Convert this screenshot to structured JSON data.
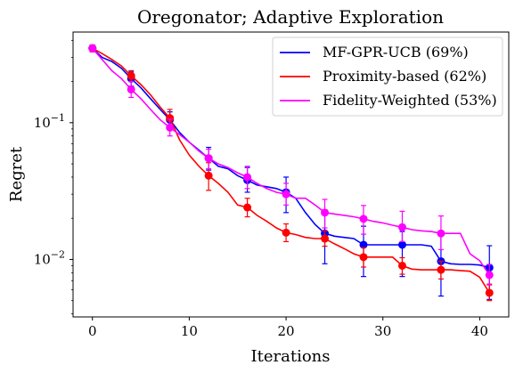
{
  "chart_data": {
    "type": "line",
    "title": "Oregonator; Adaptive Exploration",
    "xlabel": "Iterations",
    "ylabel": "Regret",
    "xlim": [
      -2,
      43
    ],
    "ylim": [
      0.0038,
      0.46
    ],
    "yscale": "log",
    "grid": false,
    "legend_position": "top-right",
    "xticks": [
      0,
      10,
      20,
      30,
      40
    ],
    "xtick_labels": [
      "0",
      "10",
      "20",
      "30",
      "40"
    ],
    "yticks": [
      0.01,
      0.1
    ],
    "ytick_labels_base": [
      "10",
      "10"
    ],
    "ytick_labels_exp": [
      "−2",
      "−1"
    ],
    "series": [
      {
        "name": "MF-GPR-UCB (69%)",
        "color": "#0000ff",
        "x": [
          0,
          1,
          2,
          3,
          4,
          5,
          6,
          7,
          8,
          9,
          10,
          11,
          12,
          13,
          14,
          15,
          16,
          17,
          18,
          19,
          20,
          21,
          22,
          23,
          24,
          25,
          26,
          27,
          28,
          29,
          30,
          31,
          32,
          33,
          34,
          35,
          36,
          37,
          38,
          39,
          40,
          41
        ],
        "y": [
          0.35,
          0.3,
          0.28,
          0.25,
          0.21,
          0.18,
          0.15,
          0.125,
          0.105,
          0.085,
          0.072,
          0.063,
          0.055,
          0.048,
          0.046,
          0.041,
          0.038,
          0.035,
          0.034,
          0.033,
          0.031,
          0.028,
          0.022,
          0.018,
          0.0155,
          0.0148,
          0.0145,
          0.0142,
          0.0128,
          0.0128,
          0.0128,
          0.0128,
          0.0128,
          0.0128,
          0.0128,
          0.0125,
          0.0097,
          0.0093,
          0.0092,
          0.0092,
          0.0091,
          0.0087
        ],
        "marker_x": [
          0,
          4,
          8,
          12,
          16,
          20,
          24,
          28,
          32,
          36,
          41
        ],
        "marker_y": [
          0.35,
          0.21,
          0.105,
          0.055,
          0.038,
          0.031,
          0.0155,
          0.0128,
          0.0128,
          0.0097,
          0.0087
        ],
        "err_lo": [
          0.33,
          0.185,
          0.09,
          0.045,
          0.031,
          0.022,
          0.0093,
          0.0075,
          0.0075,
          0.0054,
          0.0051
        ],
        "err_hi": [
          0.37,
          0.235,
          0.12,
          0.066,
          0.047,
          0.04,
          0.023,
          0.0175,
          0.016,
          0.0155,
          0.0126
        ]
      },
      {
        "name": "Proximity-based (62%)",
        "color": "#ff0000",
        "x": [
          0,
          1,
          2,
          3,
          4,
          5,
          6,
          7,
          8,
          9,
          10,
          11,
          12,
          13,
          14,
          15,
          16,
          17,
          18,
          19,
          20,
          21,
          22,
          23,
          24,
          25,
          26,
          27,
          28,
          29,
          30,
          31,
          32,
          33,
          34,
          35,
          36,
          37,
          38,
          39,
          40,
          41
        ],
        "y": [
          0.35,
          0.32,
          0.29,
          0.26,
          0.22,
          0.19,
          0.16,
          0.13,
          0.108,
          0.075,
          0.058,
          0.048,
          0.041,
          0.036,
          0.031,
          0.025,
          0.024,
          0.021,
          0.019,
          0.017,
          0.0157,
          0.0152,
          0.0145,
          0.0142,
          0.0142,
          0.013,
          0.012,
          0.011,
          0.0104,
          0.0104,
          0.0104,
          0.0104,
          0.009,
          0.0085,
          0.0084,
          0.0084,
          0.0084,
          0.0084,
          0.0083,
          0.0082,
          0.0074,
          0.0057
        ],
        "marker_x": [
          0,
          4,
          8,
          12,
          16,
          20,
          24,
          28,
          32,
          36,
          41
        ],
        "marker_y": [
          0.35,
          0.22,
          0.108,
          0.041,
          0.024,
          0.0157,
          0.0142,
          0.0104,
          0.009,
          0.0084,
          0.0057
        ],
        "err_lo": [
          0.33,
          0.2,
          0.09,
          0.032,
          0.0205,
          0.0135,
          0.0125,
          0.0088,
          0.0078,
          0.0072,
          0.005
        ],
        "err_hi": [
          0.37,
          0.24,
          0.125,
          0.051,
          0.028,
          0.0182,
          0.0162,
          0.0122,
          0.0103,
          0.0097,
          0.0066
        ]
      },
      {
        "name": "Fidelity-Weighted (53%)",
        "color": "#ff00ff",
        "x": [
          0,
          1,
          2,
          3,
          4,
          5,
          6,
          7,
          8,
          9,
          10,
          11,
          12,
          13,
          14,
          15,
          16,
          17,
          18,
          19,
          20,
          21,
          22,
          23,
          24,
          25,
          26,
          27,
          28,
          29,
          30,
          31,
          32,
          33,
          34,
          35,
          36,
          37,
          38,
          39,
          40,
          41
        ],
        "y": [
          0.35,
          0.29,
          0.24,
          0.21,
          0.175,
          0.15,
          0.125,
          0.105,
          0.092,
          0.082,
          0.072,
          0.062,
          0.055,
          0.05,
          0.047,
          0.043,
          0.04,
          0.036,
          0.033,
          0.031,
          0.03,
          0.028,
          0.028,
          0.025,
          0.022,
          0.0215,
          0.021,
          0.0205,
          0.0198,
          0.019,
          0.0185,
          0.0178,
          0.0172,
          0.0165,
          0.0162,
          0.016,
          0.0155,
          0.0155,
          0.0155,
          0.011,
          0.0098,
          0.0077
        ],
        "marker_x": [
          0,
          4,
          8,
          12,
          16,
          20,
          24,
          28,
          32,
          36,
          41
        ],
        "marker_y": [
          0.35,
          0.175,
          0.092,
          0.055,
          0.04,
          0.03,
          0.022,
          0.0198,
          0.0172,
          0.0155,
          0.0077
        ],
        "err_lo": [
          0.33,
          0.153,
          0.08,
          0.046,
          0.033,
          0.025,
          0.017,
          0.0153,
          0.0135,
          0.0118,
          0.0065
        ],
        "err_hi": [
          0.37,
          0.2,
          0.106,
          0.064,
          0.048,
          0.036,
          0.0275,
          0.0248,
          0.0225,
          0.0208,
          0.0092
        ]
      }
    ]
  }
}
